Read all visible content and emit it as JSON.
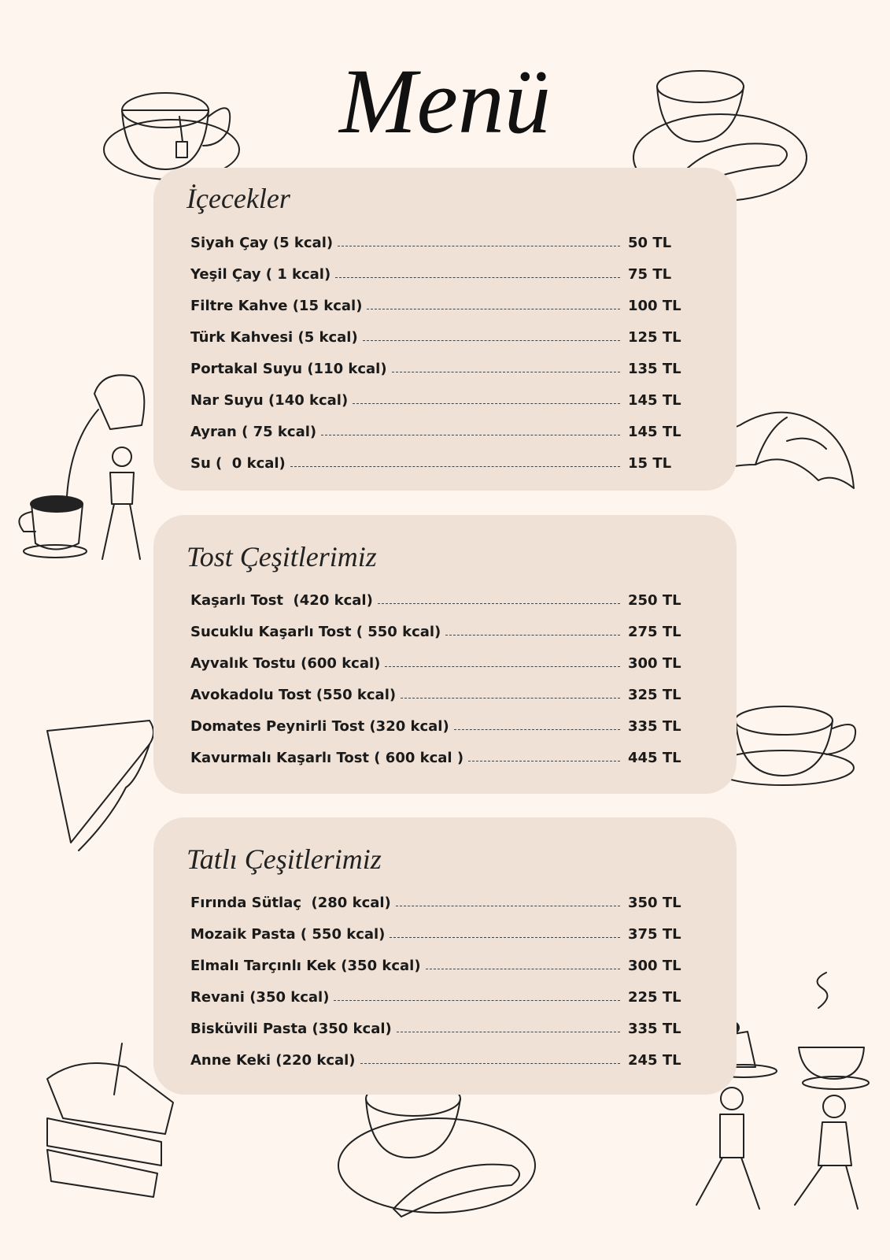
{
  "title": "Menü",
  "sections": [
    {
      "heading": "İçecekler",
      "items": [
        {
          "name": "Siyah Çay (5 kcal)",
          "price": "50 TL"
        },
        {
          "name": "Yeşil Çay ( 1 kcal)",
          "price": "75 TL"
        },
        {
          "name": "Filtre Kahve (15 kcal)",
          "price": "100 TL"
        },
        {
          "name": "Türk Kahvesi (5 kcal)",
          "price": "125 TL"
        },
        {
          "name": "Portakal Suyu (110 kcal)",
          "price": "135 TL"
        },
        {
          "name": "Nar Suyu (140 kcal)",
          "price": "145 TL"
        },
        {
          "name": "Ayran ( 75 kcal)",
          "price": "145 TL"
        },
        {
          "name": "Su (  0 kcal)",
          "price": "15 TL"
        }
      ]
    },
    {
      "heading": "Tost Çeşitlerimiz",
      "items": [
        {
          "name": "Kaşarlı Tost  (420 kcal)",
          "price": "250 TL"
        },
        {
          "name": "Sucuklu Kaşarlı Tost ( 550 kcal)",
          "price": "275 TL"
        },
        {
          "name": "Ayvalık Tostu (600 kcal)",
          "price": "300 TL"
        },
        {
          "name": "Avokadolu Tost (550 kcal)",
          "price": "325 TL"
        },
        {
          "name": "Domates Peynirli Tost (320 kcal)",
          "price": "335 TL"
        },
        {
          "name": "Kavurmalı Kaşarlı Tost ( 600 kcal )",
          "price": "445 TL"
        }
      ]
    },
    {
      "heading": "Tatlı Çeşitlerimiz",
      "items": [
        {
          "name": "Fırında Sütlaç  (280 kcal)",
          "price": "350 TL"
        },
        {
          "name": "Mozaik Pasta ( 550 kcal)",
          "price": "375 TL"
        },
        {
          "name": "Elmalı Tarçınlı Kek (350 kcal)",
          "price": "300 TL"
        },
        {
          "name": "Revani (350 kcal)",
          "price": "225 TL"
        },
        {
          "name": "Bisküvili Pasta (350 kcal)",
          "price": "335 TL"
        },
        {
          "name": "Anne Keki (220 kcal)",
          "price": "245 TL"
        }
      ]
    }
  ]
}
